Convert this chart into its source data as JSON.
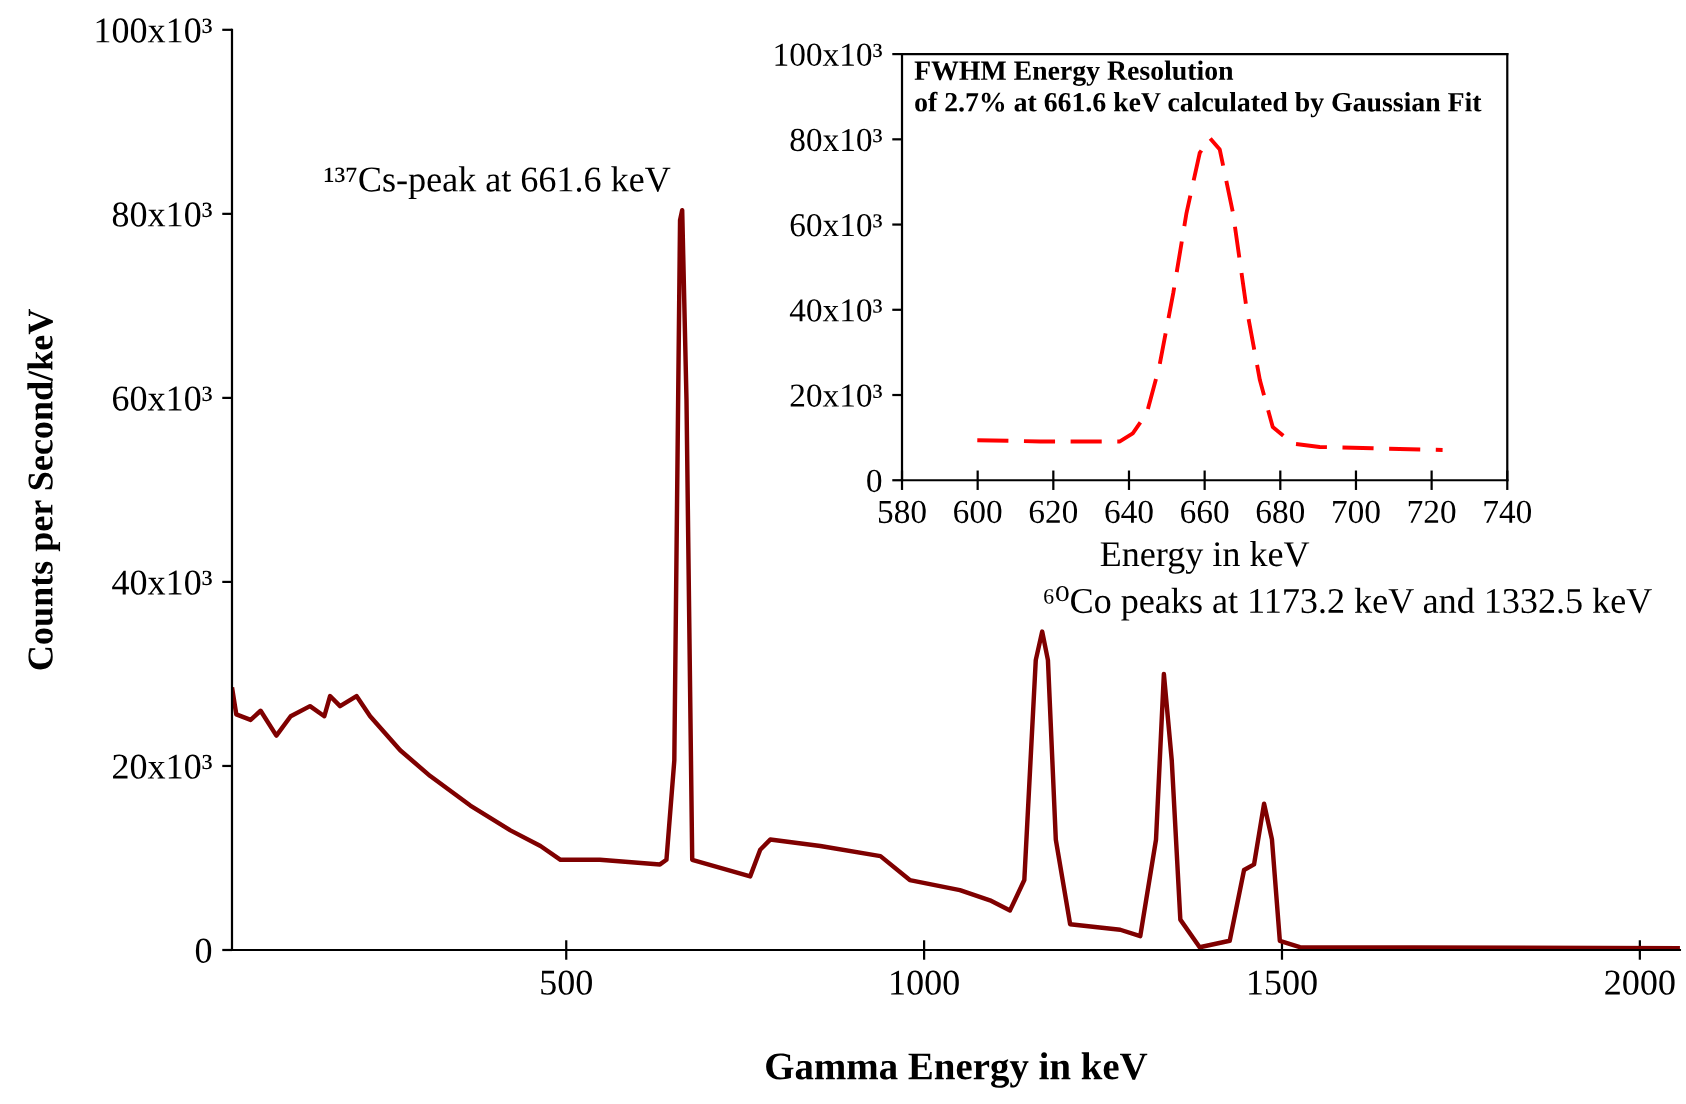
{
  "chart_data": [
    {
      "type": "line",
      "xlabel": "Gamma Energy in keV",
      "ylabel": "Counts per Second/keV",
      "xlim": [
        33,
        2056
      ],
      "ylim": [
        0,
        100000
      ],
      "xticks": [
        500,
        1000,
        1500,
        2000
      ],
      "yticks": [
        0,
        {
          "value": 20000,
          "label": "20x10³"
        },
        {
          "value": 40000,
          "label": "40x10³"
        },
        {
          "value": 60000,
          "label": "60x10³"
        },
        {
          "value": 80000,
          "label": "80x10³"
        },
        {
          "value": 100000,
          "label": "100x10³"
        }
      ],
      "grid": false,
      "legend": false,
      "marker": "none",
      "line_style": "solid",
      "annotations": [
        {
          "text": "¹³⁷Cs-peak at 661.6 keV",
          "x": 661.6,
          "y": 80400
        },
        {
          "text": "⁶⁰Co peaks at 1173.2 keV and 1332.5 keV",
          "x": 1173.2,
          "y": 34600
        }
      ],
      "series": [
        {
          "color": "#7f0000",
          "x": [
            33.5,
            39,
            59,
            73,
            95,
            115,
            142,
            162,
            170,
            184,
            207,
            226,
            268,
            310,
            366,
            422,
            464,
            492,
            547,
            631,
            640,
            651,
            659,
            662,
            668,
            676,
            757,
            771,
            785,
            855,
            939,
            980,
            1050,
            1092,
            1120,
            1140,
            1156,
            1165,
            1173,
            1184,
            1204,
            1274,
            1302,
            1324,
            1335,
            1346,
            1358,
            1385,
            1427,
            1447,
            1461,
            1475,
            1486,
            1497,
            1525,
            2056
          ],
          "values": [
            28300,
            25600,
            25000,
            26000,
            23300,
            25400,
            26500,
            25400,
            27600,
            26500,
            27600,
            25400,
            21700,
            18900,
            15700,
            13000,
            11300,
            9800,
            9800,
            9300,
            9800,
            20600,
            79300,
            80400,
            59800,
            9800,
            8000,
            10900,
            12000,
            11300,
            10200,
            7600,
            6500,
            5400,
            4300,
            7600,
            31500,
            34600,
            31500,
            12000,
            2800,
            2200,
            1500,
            12000,
            30000,
            20600,
            3300,
            300,
            1000,
            8700,
            9300,
            15900,
            12000,
            1000,
            300,
            200
          ]
        }
      ]
    },
    {
      "type": "line",
      "title": "FWHM Energy Resolution\nof 2.7% at 661.6 keV calculated by Gaussian Fit",
      "xlabel": "Energy in keV",
      "xlim": [
        580,
        740
      ],
      "ylim": [
        0,
        100000
      ],
      "xticks": [
        580,
        600,
        620,
        640,
        660,
        680,
        700,
        720,
        740
      ],
      "yticks": [
        0,
        {
          "value": 20000,
          "label": "20x10³"
        },
        {
          "value": 40000,
          "label": "40x10³"
        },
        {
          "value": 60000,
          "label": "60x10³"
        },
        {
          "value": 80000,
          "label": "80x10³"
        },
        {
          "value": 100000,
          "label": "100x10³"
        }
      ],
      "grid": false,
      "legend": false,
      "marker": "none",
      "line_style": "dashed",
      "series": [
        {
          "color": "#ff0000",
          "x": [
            599.9,
            616.6,
            637.6,
            641,
            644.7,
            648,
            651.7,
            655.2,
            658.7,
            661.4,
            664,
            667.5,
            671,
            674.6,
            678,
            683.3,
            690.4,
            704.4,
            722.9
          ],
          "values": [
            9400,
            9100,
            9100,
            11000,
            15700,
            26600,
            43900,
            62700,
            76800,
            80300,
            77600,
            62700,
            40800,
            23500,
            12500,
            8600,
            7800,
            7500,
            7100
          ]
        }
      ]
    }
  ]
}
